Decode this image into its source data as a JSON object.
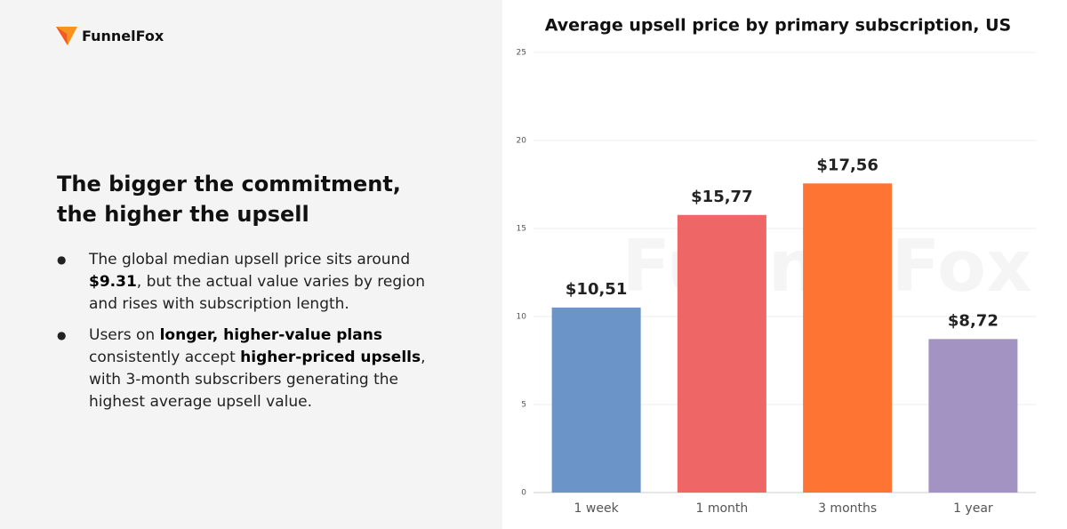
{
  "logo": {
    "text": "FunnelFox"
  },
  "heading": "The bigger the commitment, the higher the upsell",
  "bullets": [
    [
      "The global median upsell price sits around ",
      "$9.31",
      ", but the actual value varies by region and rises with subscription length."
    ],
    [
      "Users on ",
      "longer, higher-value plans",
      " consistently accept ",
      "higher-priced upsells",
      ", with 3-month subscribers generating the highest average upsell value."
    ]
  ],
  "watermark": "FunnelFox",
  "chart_data": {
    "type": "bar",
    "title": "Average upsell price by primary subscription, US",
    "categories": [
      "1 week",
      "1 month",
      "3 months",
      "1 year"
    ],
    "values": [
      10.51,
      15.77,
      17.56,
      8.72
    ],
    "value_labels": [
      "$10,51",
      "$15,77",
      "$17,56",
      "$8,72"
    ],
    "colors": [
      "#6b95c8",
      "#ee6665",
      "#fd7433",
      "#a393c3"
    ],
    "ylim": [
      0,
      25
    ],
    "yticks": [
      0,
      5,
      10,
      15,
      20,
      25
    ],
    "grid": true
  }
}
